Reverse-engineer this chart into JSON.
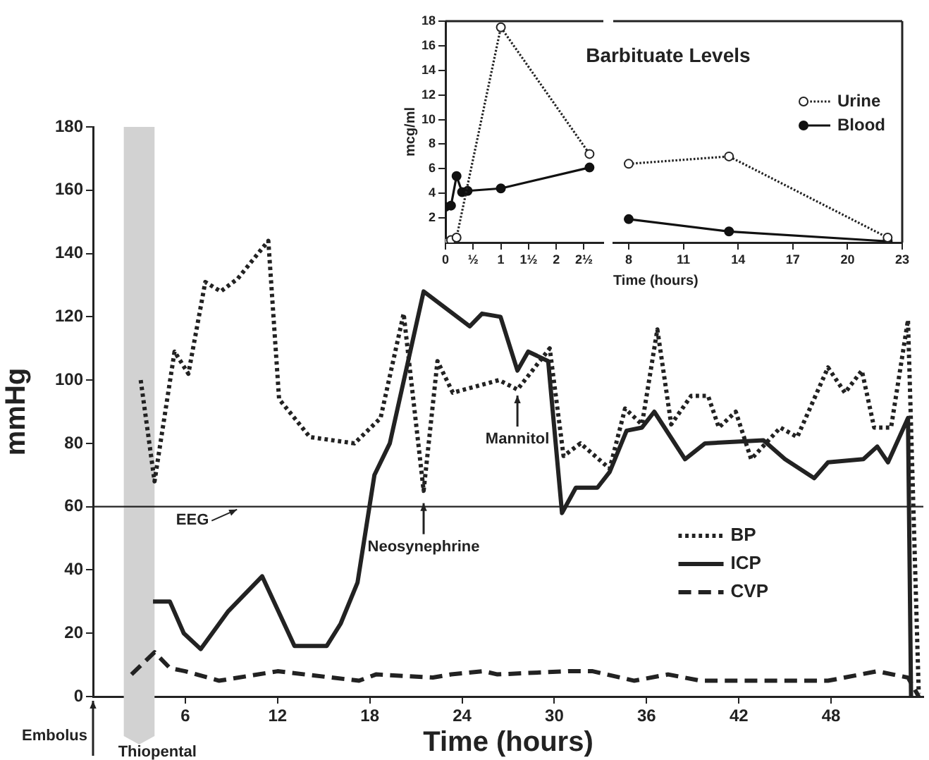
{
  "chart_data": [
    {
      "type": "line",
      "xlabel": "Time (hours)",
      "ylabel": "mmHg",
      "xlim": [
        0,
        54
      ],
      "ylim": [
        0,
        180
      ],
      "xticks": [
        6,
        12,
        18,
        24,
        30,
        36,
        42,
        48
      ],
      "yticks": [
        0,
        20,
        40,
        60,
        80,
        100,
        120,
        140,
        160,
        180
      ],
      "grid": false,
      "legend": "bottom right",
      "marker": "none",
      "series": [
        {
          "name": "BP",
          "color": "#222222",
          "line_style": "dotted",
          "x": [
            3.1,
            4.0,
            5.3,
            6.2,
            7.3,
            8.3,
            9.4,
            11.4,
            12.1,
            14.1,
            17.0,
            18.7,
            20.2,
            21.5,
            22.4,
            23.4,
            26.4,
            27.6,
            29.7,
            30.6,
            31.7,
            33.6,
            34.6,
            35.7,
            36.7,
            37.6,
            38.9,
            40.0,
            40.7,
            41.8,
            42.8,
            44.7,
            45.8,
            47.8,
            48.9,
            50.0,
            50.8,
            51.9,
            53.0,
            53.7
          ],
          "values": [
            100,
            68,
            109,
            102,
            131,
            128,
            132,
            144,
            94,
            82,
            80,
            88,
            121,
            65,
            106,
            96,
            100,
            97,
            110,
            76,
            80,
            72,
            91,
            86,
            116,
            86,
            95,
            95,
            85,
            90,
            75,
            85,
            82,
            104,
            96,
            103,
            85,
            85,
            119,
            1
          ]
        },
        {
          "name": "ICP",
          "color": "#222222",
          "line_style": "solid",
          "x": [
            3.9,
            5.0,
            5.9,
            7.0,
            8.8,
            11.0,
            13.1,
            15.2,
            16.1,
            17.2,
            18.3,
            19.3,
            21.5,
            24.5,
            25.3,
            26.5,
            27.6,
            28.3,
            29.6,
            30.5,
            31.4,
            32.8,
            33.6,
            34.7,
            35.7,
            36.5,
            38.5,
            39.8,
            43.6,
            45.0,
            46.9,
            47.8,
            50.1,
            51.0,
            51.7,
            53.0,
            53.2
          ],
          "values": [
            30,
            30,
            20,
            15,
            27,
            38,
            16,
            16,
            23,
            36,
            70,
            80,
            128,
            117,
            121,
            120,
            103,
            109,
            106,
            58,
            66,
            66,
            71,
            84,
            85,
            90,
            75,
            80,
            81,
            75,
            69,
            74,
            75,
            79,
            74,
            88,
            0
          ]
        },
        {
          "name": "CVP",
          "color": "#222222",
          "line_style": "dashed",
          "x": [
            2.5,
            4.0,
            5.0,
            6.0,
            8.2,
            12.0,
            17.3,
            18.4,
            22.1,
            23.3,
            25.4,
            26.3,
            30.9,
            32.5,
            35.2,
            37.4,
            39.5,
            47.8,
            51.0,
            53.0,
            53.7
          ],
          "values": [
            7,
            14,
            9,
            8,
            5,
            8,
            5,
            7,
            6,
            7,
            8,
            7,
            8,
            8,
            5,
            7,
            5,
            5,
            8,
            6,
            0
          ]
        }
      ],
      "ref_lines": [
        {
          "axis": "y",
          "value": 60,
          "label": "EEG",
          "color": "#222222"
        }
      ],
      "bands": [
        {
          "axis": "x",
          "from": 2,
          "to": 4,
          "label": "Thiopental",
          "color": "#d2d2d2"
        }
      ],
      "annotations": [
        "Embolus",
        {
          "text": "Neosynephrine",
          "x": 21.5,
          "y": 62
        },
        {
          "text": "Mannitol",
          "x": 27.6,
          "y": 96
        }
      ]
    },
    {
      "type": "line",
      "ylabel": "mcg/ml",
      "xlim": [
        0,
        2.85
      ],
      "ylim": [
        0,
        18
      ],
      "xticks": [
        0,
        {
          "value": 0.5,
          "label": "½"
        },
        1,
        {
          "value": 1.5,
          "label": "1½"
        },
        2,
        {
          "value": 2.5,
          "label": "2½"
        }
      ],
      "yticks": [
        2,
        4,
        6,
        8,
        10,
        12,
        14,
        16,
        18
      ],
      "grid": false,
      "marker": "circle",
      "series": [
        {
          "color": "#222222",
          "line_style": "dotted",
          "x": [
            0,
            0.1,
            0.2,
            1.0,
            2.6
          ],
          "values": [
            0,
            0.2,
            0.4,
            17.5,
            7.2
          ]
        },
        {
          "color": "#111111",
          "line_style": "solid",
          "x": [
            0,
            0,
            0.1,
            0.2,
            0.3,
            0.4,
            1.0,
            2.6
          ],
          "values": [
            0,
            2.9,
            3.0,
            5.4,
            4.1,
            4.2,
            4.4,
            6.1
          ]
        }
      ]
    },
    {
      "type": "line",
      "title": "Barbituate Levels",
      "xlabel": "Time (hours)",
      "xlim": [
        7.15,
        23
      ],
      "ylim": [
        0,
        18
      ],
      "xticks": [
        8,
        11,
        14,
        17,
        20,
        23
      ],
      "tick_labels": "x",
      "grid": false,
      "legend": "top right",
      "marker": "circle",
      "series": [
        {
          "name": "Urine",
          "color": "#222222",
          "line_style": "dotted",
          "x": [
            8.0,
            13.5,
            22.2
          ],
          "values": [
            6.4,
            7.0,
            0.4
          ]
        },
        {
          "name": "Blood",
          "color": "#111111",
          "line_style": "solid",
          "x": [
            8.0,
            13.5,
            22.2
          ],
          "values": [
            1.9,
            0.9,
            0.1
          ]
        }
      ]
    }
  ]
}
